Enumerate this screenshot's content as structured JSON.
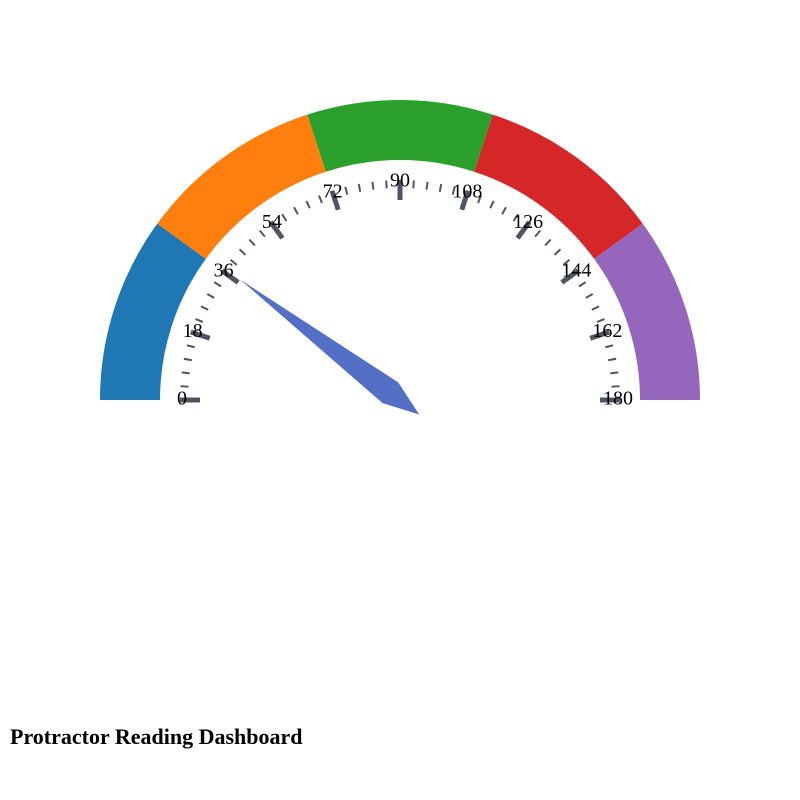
{
  "page": {
    "title": "Protractor Reading Dashboard"
  },
  "chart_data": {
    "type": "gauge",
    "min": 0,
    "max": 180,
    "value": 37,
    "major_ticks": [
      "0",
      "18",
      "36",
      "54",
      "72",
      "90",
      "108",
      "126",
      "144",
      "162",
      "180"
    ],
    "minor_tick_step": 3.6,
    "bands": [
      {
        "from": 0,
        "to": 36,
        "color": "#1f77b4"
      },
      {
        "from": 36,
        "to": 72,
        "color": "#ff7f0e"
      },
      {
        "from": 72,
        "to": 108,
        "color": "#2ca02c"
      },
      {
        "from": 108,
        "to": 144,
        "color": "#d62728"
      },
      {
        "from": 144,
        "to": 180,
        "color": "#9467bd"
      }
    ],
    "needle_color": "#5470c6",
    "tick_color": "#505566"
  }
}
